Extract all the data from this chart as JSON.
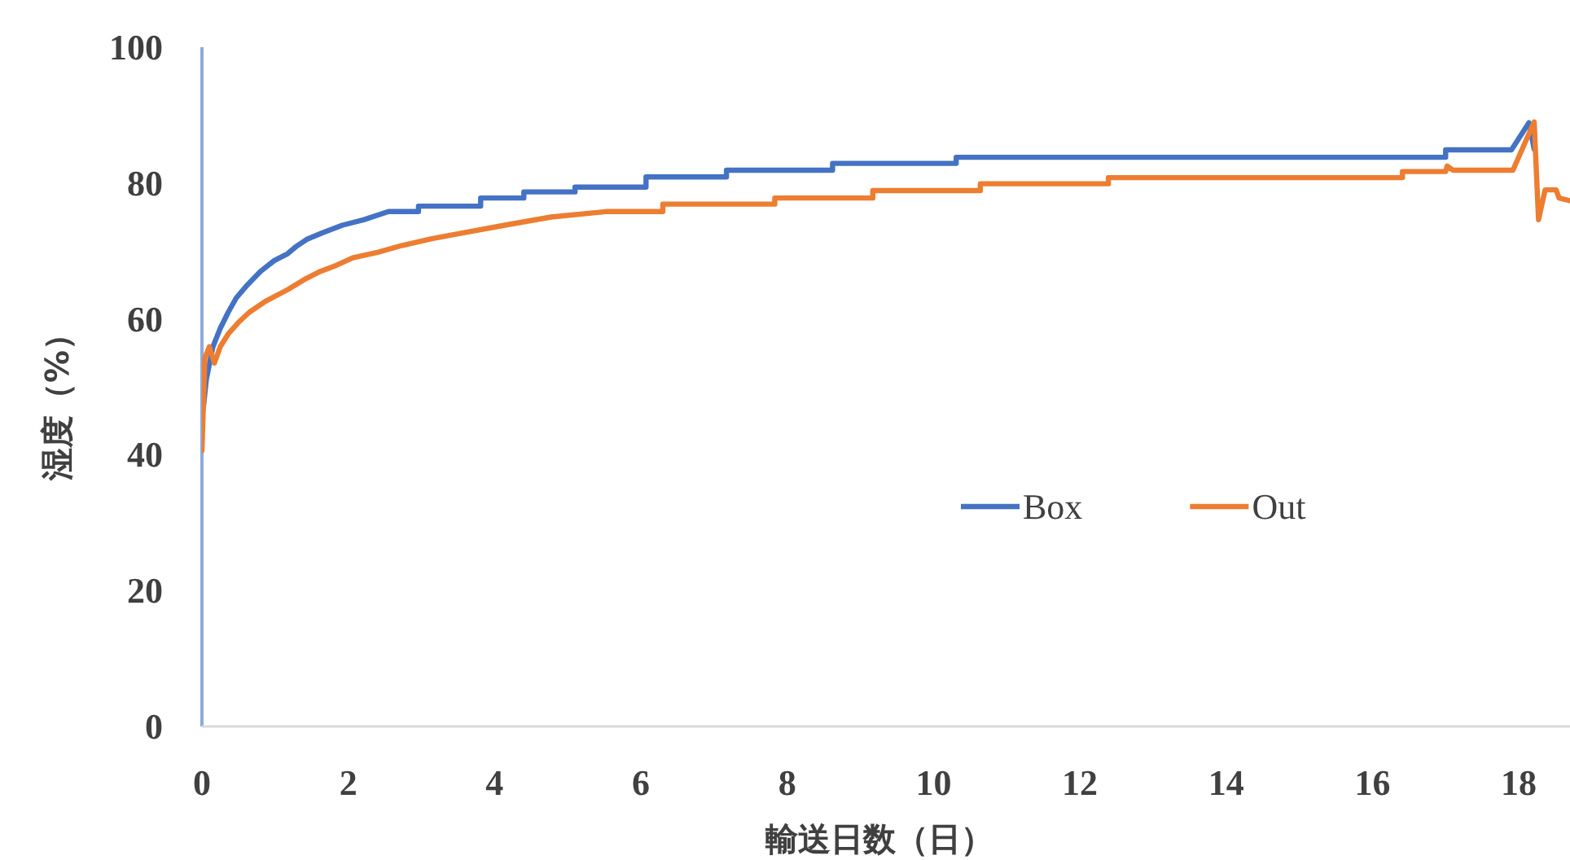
{
  "chart_data": {
    "type": "line",
    "xlabel": "輸送日数（日）",
    "ylabel": "湿度（%）",
    "xlim": [
      0,
      18.7
    ],
    "ylim": [
      0,
      100
    ],
    "xticks": [
      0,
      2,
      4,
      6,
      8,
      10,
      12,
      14,
      16,
      18
    ],
    "yticks": [
      0,
      20,
      40,
      60,
      80,
      100
    ],
    "grid": false,
    "legend": "right",
    "marker": "none",
    "line_style": "solid",
    "series": [
      {
        "name": "Box",
        "color": "#4472c4",
        "x": [
          0,
          0.02,
          0.06,
          0.15,
          0.25,
          0.36,
          0.47,
          0.62,
          0.8,
          0.99,
          1.17,
          1.28,
          1.43,
          1.65,
          1.92,
          2.21,
          2.55,
          2.96,
          2.96,
          3.81,
          3.81,
          4.4,
          4.4,
          5.1,
          5.1,
          6.07,
          6.07,
          7.17,
          7.17,
          8.62,
          8.62,
          10.31,
          10.31,
          17.0,
          17.0,
          17.9,
          18.14,
          18.21
        ],
        "values": [
          46,
          47,
          51.1,
          55.9,
          58.6,
          61,
          63.1,
          65,
          67,
          68.6,
          69.6,
          70.6,
          71.7,
          72.7,
          73.8,
          74.6,
          75.8,
          75.8,
          76.6,
          76.6,
          77.8,
          77.8,
          78.7,
          78.7,
          79.4,
          79.4,
          80.9,
          80.9,
          81.9,
          81.9,
          82.9,
          82.9,
          83.8,
          83.8,
          84.9,
          84.9,
          88.9,
          85
        ]
      },
      {
        "name": "Out",
        "color": "#ed7d31",
        "x": [
          0,
          0.04,
          0.1,
          0.17,
          0.25,
          0.36,
          0.5,
          0.65,
          0.87,
          1.17,
          1.4,
          1.62,
          1.84,
          2.06,
          2.4,
          2.73,
          3.14,
          3.59,
          4.14,
          4.77,
          5.52,
          6.3,
          6.3,
          7.83,
          7.83,
          9.17,
          9.17,
          10.64,
          10.64,
          12.39,
          12.39,
          16.41,
          16.41,
          17.0,
          17.02,
          17.1,
          17.92,
          18.21,
          18.27,
          18.36,
          18.51,
          18.55,
          18.7
        ],
        "values": [
          40.6,
          54.2,
          55.9,
          53.5,
          55.9,
          57.8,
          59.5,
          61,
          62.6,
          64.3,
          65.8,
          67,
          67.9,
          69,
          69.8,
          70.8,
          71.8,
          72.7,
          73.8,
          75,
          75.8,
          75.8,
          76.9,
          76.9,
          77.8,
          77.8,
          78.9,
          78.9,
          79.9,
          79.9,
          80.8,
          80.8,
          81.7,
          81.7,
          82.5,
          81.9,
          81.9,
          89,
          74.6,
          79,
          79,
          77.8,
          77.4
        ]
      }
    ]
  }
}
